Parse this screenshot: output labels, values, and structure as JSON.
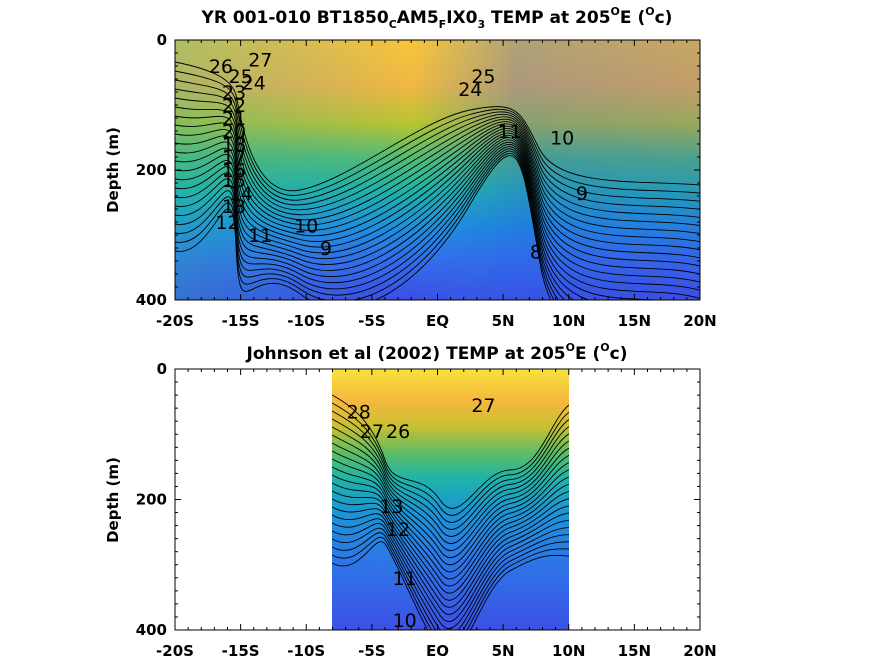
{
  "figure": {
    "panels": [
      {
        "title_parts": [
          "YR 001-010 BT1850",
          "C",
          "AM5",
          "F",
          "IX0",
          "3",
          " TEMP at 205",
          "O",
          "E (",
          "O",
          "c)"
        ],
        "ylabel": "Depth (m)",
        "yticks": [
          "0",
          "200",
          "400"
        ],
        "xticks": [
          "-20S",
          "-15S",
          "-10S",
          "-5S",
          "EQ",
          "5N",
          "10N",
          "15N",
          "20N"
        ]
      },
      {
        "title_parts": [
          "Johnson et al (2002) TEMP at 205",
          "O",
          "E (",
          "O",
          "c)"
        ],
        "ylabel": "Depth (m)",
        "yticks": [
          "0",
          "200",
          "400"
        ],
        "xticks": [
          "-20S",
          "-15S",
          "-10S",
          "-5S",
          "EQ",
          "5N",
          "10N",
          "15N",
          "20N"
        ]
      }
    ]
  },
  "chart_data": [
    {
      "type": "heatmap",
      "subtype": "filled contour",
      "title": "YR 001-010 BT1850CAM5FIX03 TEMP at 205OE (Oc)",
      "xlabel": "",
      "ylabel": "Depth (m)",
      "xlim": [
        -20,
        20
      ],
      "ylim": [
        400,
        0
      ],
      "colormap": "parula",
      "x_tick_labels": [
        "-20S",
        "-15S",
        "-10S",
        "-5S",
        "EQ",
        "5N",
        "10N",
        "15N",
        "20N"
      ],
      "y_tick_labels": [
        "0",
        "200",
        "400"
      ],
      "contour_labels": [
        {
          "text": "27",
          "lat": -13.5,
          "depth": 30
        },
        {
          "text": "26",
          "lat": -16.5,
          "depth": 40
        },
        {
          "text": "25",
          "lat": -15,
          "depth": 55
        },
        {
          "text": "24",
          "lat": -14,
          "depth": 65
        },
        {
          "text": "23",
          "lat": -15.5,
          "depth": 80
        },
        {
          "text": "22",
          "lat": -15.5,
          "depth": 100
        },
        {
          "text": "21",
          "lat": -15.5,
          "depth": 120
        },
        {
          "text": "20",
          "lat": -15.5,
          "depth": 140
        },
        {
          "text": "18",
          "lat": -15.5,
          "depth": 160
        },
        {
          "text": "17",
          "lat": -15.5,
          "depth": 180
        },
        {
          "text": "16",
          "lat": -15.5,
          "depth": 200
        },
        {
          "text": "15",
          "lat": -15.5,
          "depth": 215
        },
        {
          "text": "14",
          "lat": -15,
          "depth": 235
        },
        {
          "text": "13",
          "lat": -15.5,
          "depth": 255
        },
        {
          "text": "12",
          "lat": -16,
          "depth": 280
        },
        {
          "text": "11",
          "lat": -13.5,
          "depth": 300
        },
        {
          "text": "10",
          "lat": -10,
          "depth": 285
        },
        {
          "text": "9",
          "lat": -8.5,
          "depth": 320
        },
        {
          "text": "25",
          "lat": 3.5,
          "depth": 55
        },
        {
          "text": "24",
          "lat": 2.5,
          "depth": 75
        },
        {
          "text": "11",
          "lat": 5.5,
          "depth": 140
        },
        {
          "text": "10",
          "lat": 9.5,
          "depth": 150
        },
        {
          "text": "9",
          "lat": 11,
          "depth": 235
        },
        {
          "text": "8",
          "lat": 7.5,
          "depth": 325
        }
      ]
    },
    {
      "type": "heatmap",
      "subtype": "filled contour",
      "title": "Johnson et al (2002) TEMP at 205OE (Oc)",
      "xlabel": "",
      "ylabel": "Depth (m)",
      "xlim": [
        -20,
        20
      ],
      "ylim": [
        400,
        0
      ],
      "data_lat_range": [
        -8,
        10
      ],
      "colormap": "parula",
      "x_tick_labels": [
        "-20S",
        "-15S",
        "-10S",
        "-5S",
        "EQ",
        "5N",
        "10N",
        "15N",
        "20N"
      ],
      "y_tick_labels": [
        "0",
        "200",
        "400"
      ],
      "contour_labels": [
        {
          "text": "28",
          "lat": -6,
          "depth": 65
        },
        {
          "text": "27",
          "lat": 3.5,
          "depth": 55
        },
        {
          "text": "27",
          "lat": -5,
          "depth": 95
        },
        {
          "text": "26",
          "lat": -3,
          "depth": 95
        },
        {
          "text": "13",
          "lat": -3.5,
          "depth": 210
        },
        {
          "text": "12",
          "lat": -3,
          "depth": 245
        },
        {
          "text": "11",
          "lat": -2.5,
          "depth": 320
        },
        {
          "text": "10",
          "lat": -2.5,
          "depth": 385
        }
      ]
    }
  ]
}
